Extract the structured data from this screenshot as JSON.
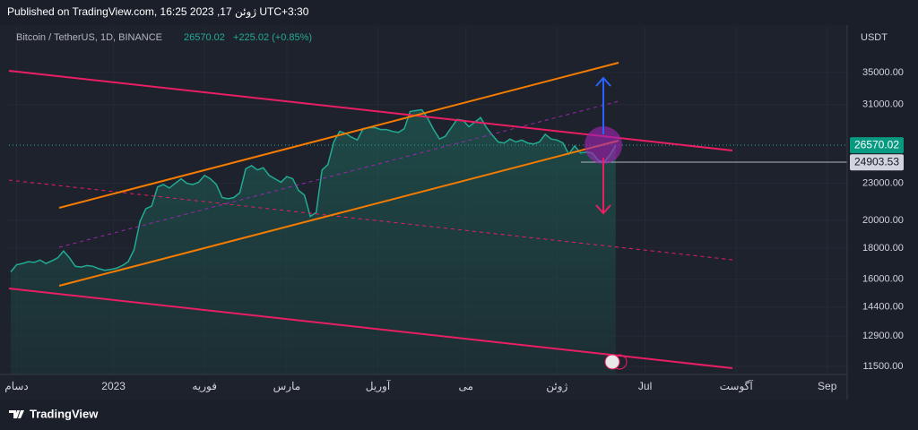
{
  "header": {
    "published": "Published on TradingView.com, 16:25 2023 ,17 ژوئن UTC+3:30"
  },
  "chart_data": {
    "type": "area",
    "title": "Bitcoin / TetherUS, 1D, BINANCE",
    "change": "+225.02 (+0.85%)",
    "currency": "USDT",
    "color": "#22ab94",
    "log_scale": true,
    "grid": true,
    "last_price": 26570.02,
    "hline_price": 24903.53,
    "values": [
      16450,
      16900,
      16980,
      17100,
      17050,
      17200,
      16980,
      17150,
      17350,
      17800,
      17350,
      16800,
      16750,
      16850,
      16800,
      16650,
      16550,
      16600,
      16680,
      16850,
      17100,
      17900,
      19900,
      20900,
      21100,
      22700,
      22900,
      22600,
      23000,
      23400,
      23000,
      22900,
      23100,
      23700,
      23400,
      22900,
      21800,
      21700,
      21800,
      22200,
      24300,
      24600,
      24200,
      24400,
      23700,
      23400,
      23100,
      23600,
      23400,
      22400,
      22000,
      20300,
      20600,
      24200,
      24700,
      26900,
      28000,
      27800,
      27400,
      27100,
      28300,
      28400,
      28400,
      28200,
      28200,
      28000,
      27900,
      28300,
      30200,
      30300,
      30400,
      29400,
      28200,
      27200,
      27500,
      28400,
      29300,
      29200,
      28500,
      29000,
      29500,
      28400,
      27600,
      26900,
      26800,
      27200,
      26900,
      27100,
      26800,
      26700,
      26900,
      27700,
      27200,
      27100,
      26800,
      25700,
      26500,
      25800,
      25900,
      25800,
      25100,
      24900,
      25600,
      26570
    ],
    "ylim": [
      11230,
      41600
    ],
    "yticks": [
      {
        "value": 35000,
        "label": "35000.00"
      },
      {
        "value": 31000,
        "label": "31000.00"
      },
      {
        "value": 23000,
        "label": "23000.00"
      },
      {
        "value": 20000,
        "label": "20000.00"
      },
      {
        "value": 18000,
        "label": "18000.00"
      },
      {
        "value": 16000,
        "label": "16000.00"
      },
      {
        "value": 14400,
        "label": "14400.00"
      },
      {
        "value": 12900,
        "label": "12900.00"
      },
      {
        "value": 11500,
        "label": "11500.00"
      }
    ],
    "xlim": [
      -0.3,
      142.4
    ],
    "xticks": [
      {
        "value": 1,
        "label": "دسام"
      },
      {
        "value": 17.5,
        "label": "2023"
      },
      {
        "value": 33,
        "label": "فوریه"
      },
      {
        "value": 47,
        "label": "مارس"
      },
      {
        "value": 62.5,
        "label": "آوریل"
      },
      {
        "value": 77.5,
        "label": "می"
      },
      {
        "value": 93,
        "label": "ژوئن"
      },
      {
        "value": 108,
        "label": "Jul"
      },
      {
        "value": 123.5,
        "label": "آگوست"
      },
      {
        "value": 139,
        "label": "Sep"
      }
    ]
  },
  "footer": {
    "brand": "TradingView"
  }
}
